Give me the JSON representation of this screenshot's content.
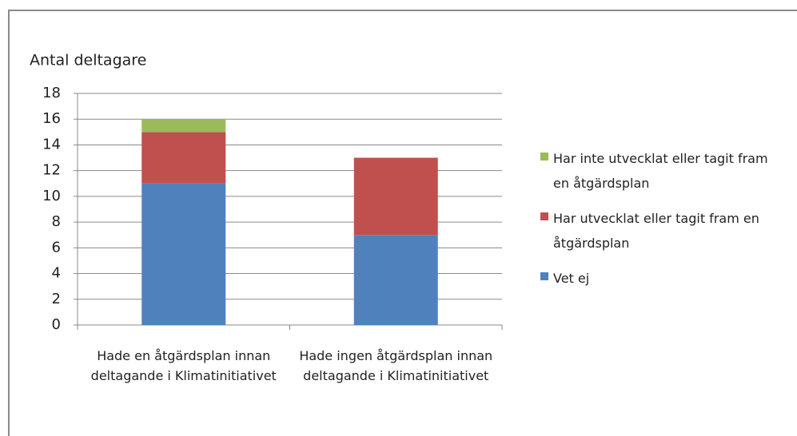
{
  "chart_data": {
    "type": "stacked_bar",
    "title": "Antal deltagare",
    "categories": [
      "Hade en åtgärdsplan innan deltagande i Klimatinitiativet",
      "Hade ingen åtgärdsplan innan deltagande i Klimatinitiativet"
    ],
    "series": [
      {
        "name": "Vet ej",
        "color": "#4f81bd",
        "values": [
          11,
          7
        ]
      },
      {
        "name": "Har utvecklat eller tagit fram en åtgärdsplan",
        "color": "#c0504d",
        "values": [
          4,
          6
        ]
      },
      {
        "name": "Har inte utvecklat eller tagit fram en åtgärdsplan",
        "color": "#9bbb59",
        "values": [
          1,
          0
        ]
      }
    ],
    "ylim": [
      0,
      18
    ],
    "yticks": [
      0,
      2,
      4,
      6,
      8,
      10,
      12,
      14,
      16,
      18
    ],
    "grid": true,
    "legend": "right"
  }
}
